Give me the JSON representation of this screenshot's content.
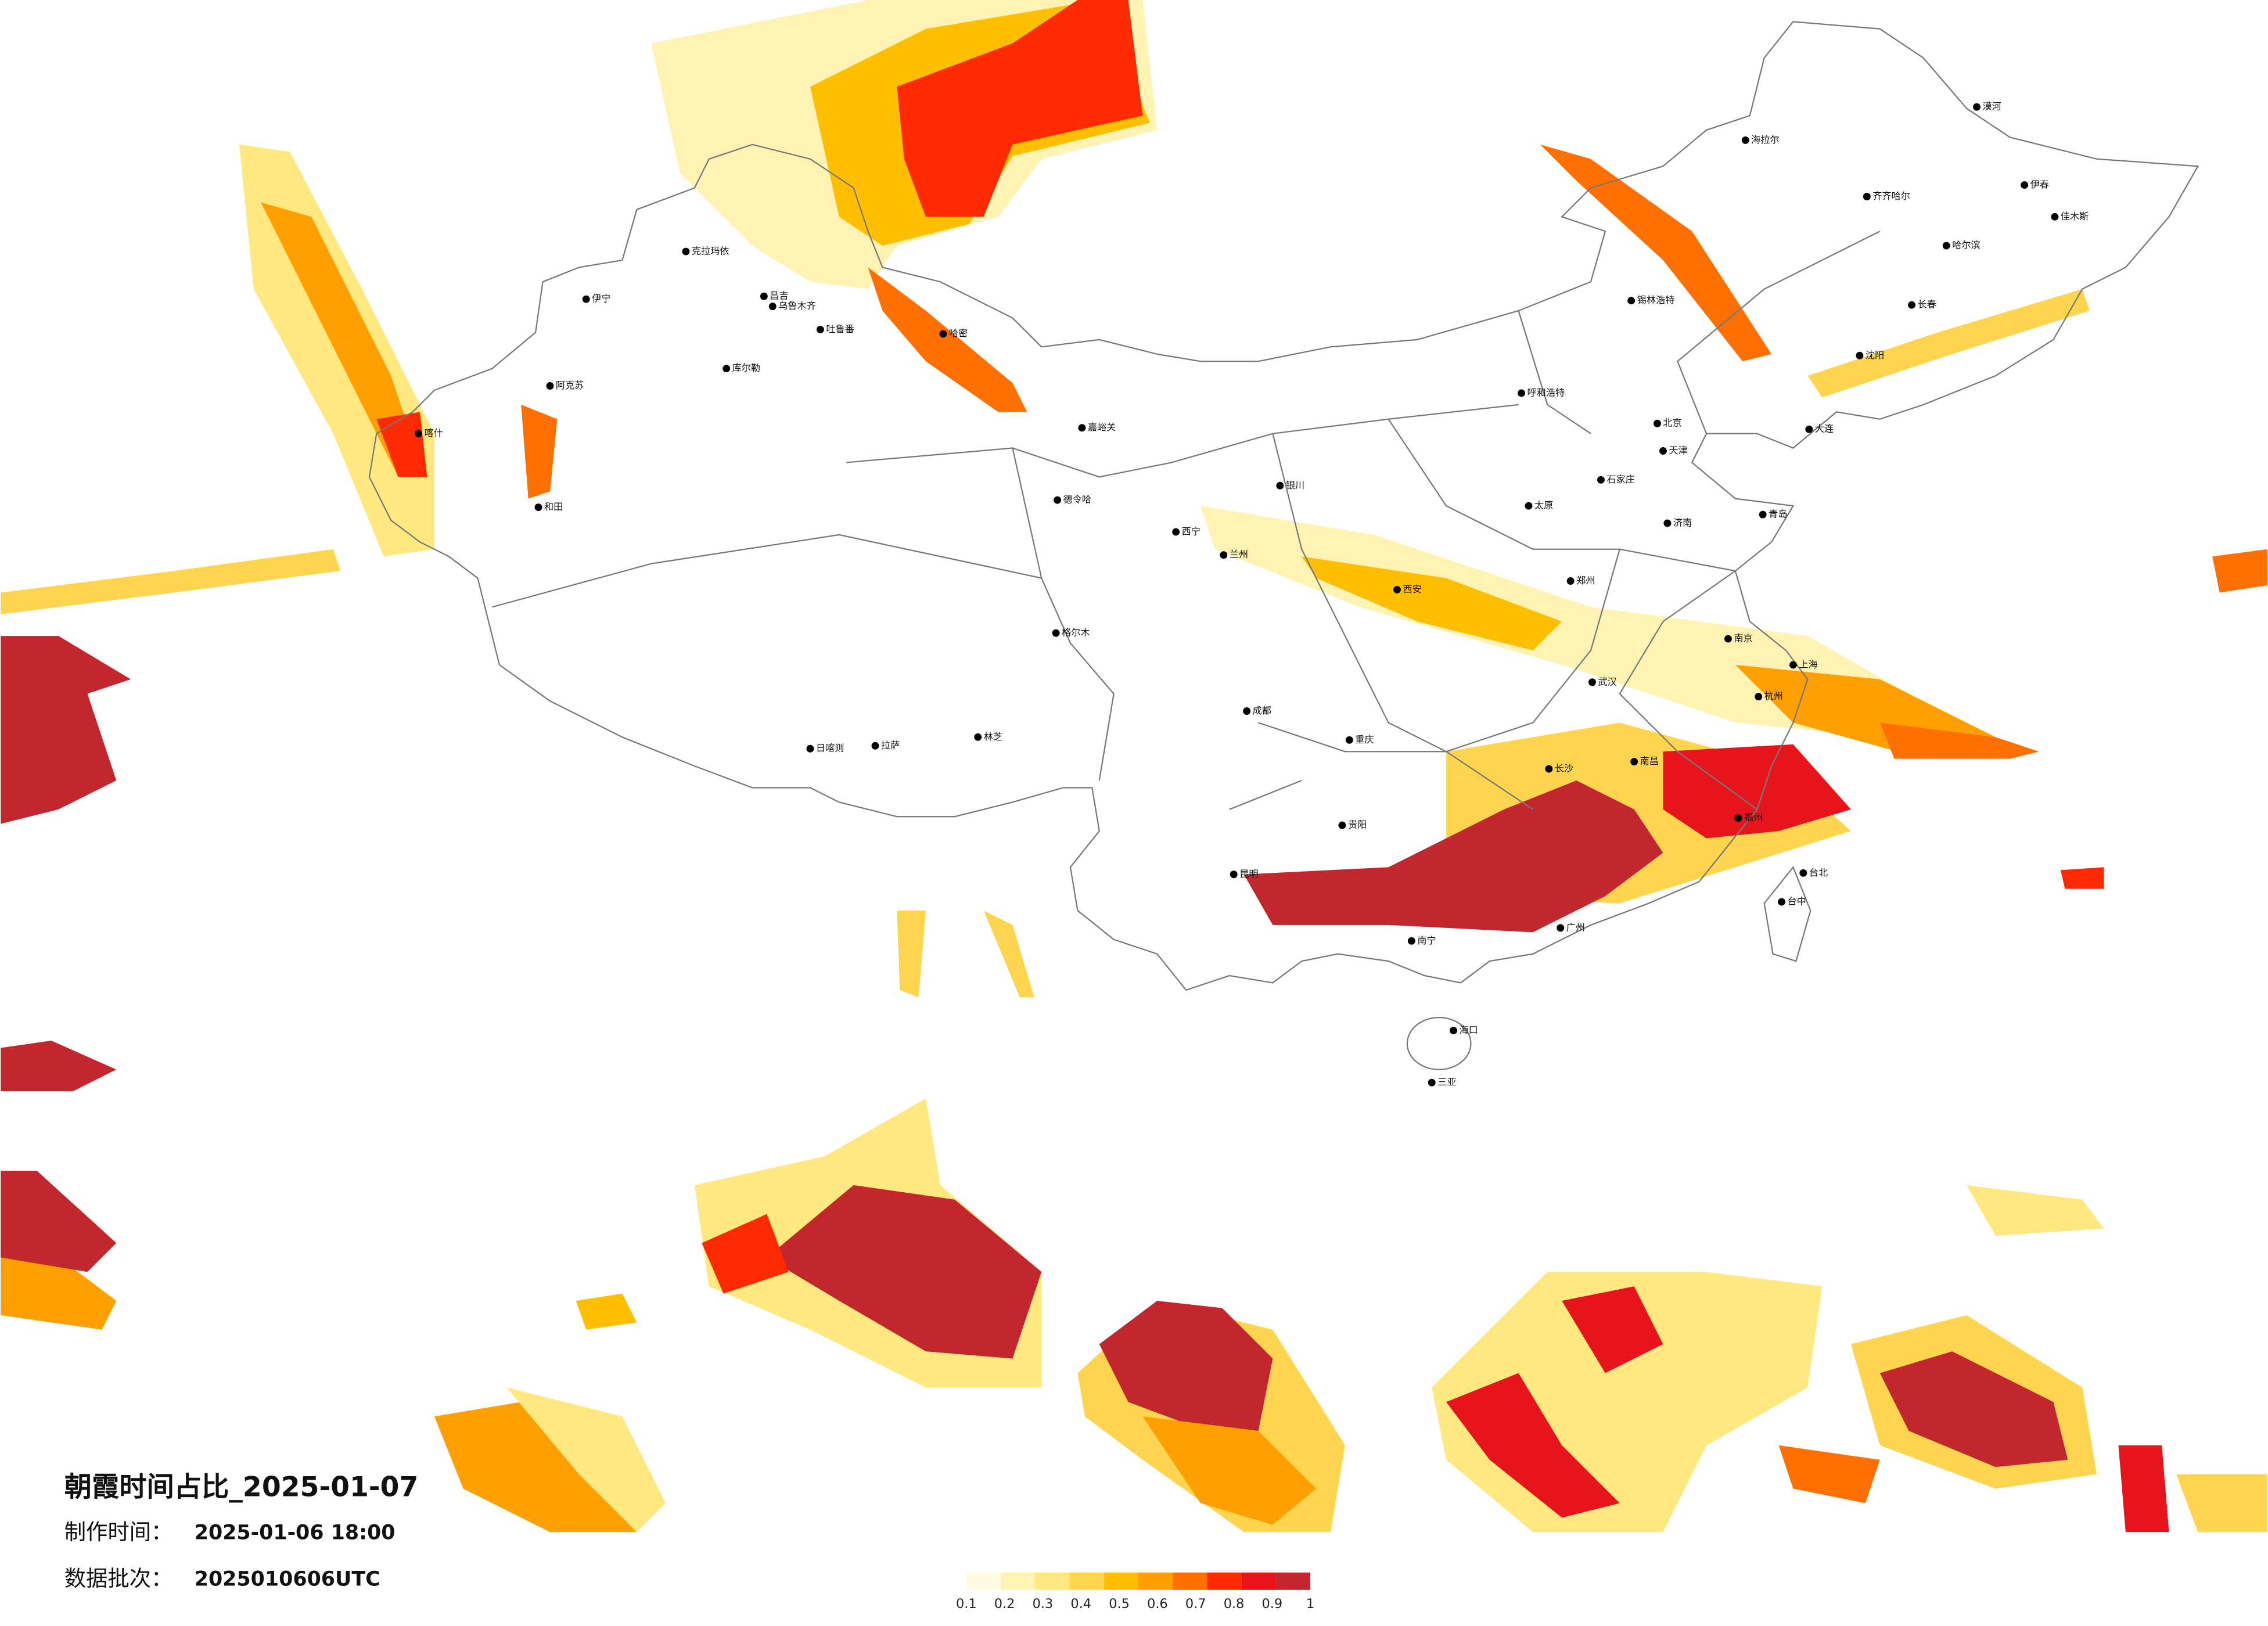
{
  "header": {
    "title": "朝霞时间占比_2025-01-07",
    "made_label": "制作时间：",
    "made_time": "2025-01-06 18:00",
    "batch_label": "数据批次：",
    "batch": "2025010606UTC"
  },
  "legend": {
    "ticks": [
      0.1,
      0.2,
      0.3,
      0.4,
      0.5,
      0.6,
      0.7,
      0.8,
      0.9,
      1
    ],
    "colors": [
      "#fffbe0",
      "#fff3b3",
      "#ffe880",
      "#ffd54f",
      "#ffbf00",
      "#ff9f00",
      "#ff7000",
      "#ff2a00",
      "#e8141c",
      "#c1272d"
    ]
  },
  "cities": [
    "伊宁",
    "克拉玛依",
    "昌吉",
    "乌鲁木齐",
    "吐鲁番",
    "哈密",
    "库尔勒",
    "阿克苏",
    "喀什",
    "和田",
    "日喀则",
    "拉萨",
    "林芝",
    "嘉峪关",
    "德令哈",
    "格尔木",
    "西宁",
    "兰州",
    "银川",
    "呼和浩特",
    "锡林浩特",
    "北京",
    "天津",
    "石家庄",
    "太原",
    "济南",
    "青岛",
    "郑州",
    "西安",
    "武汉",
    "南京",
    "上海",
    "杭州",
    "成都",
    "重庆",
    "贵阳",
    "昆明",
    "长沙",
    "南昌",
    "福州",
    "广州",
    "南宁",
    "海口",
    "三亚",
    "台北",
    "台中",
    "大连",
    "沈阳",
    "长春",
    "哈尔滨",
    "齐齐哈尔",
    "海拉尔",
    "漠河",
    "伊春",
    "佳木斯"
  ]
}
